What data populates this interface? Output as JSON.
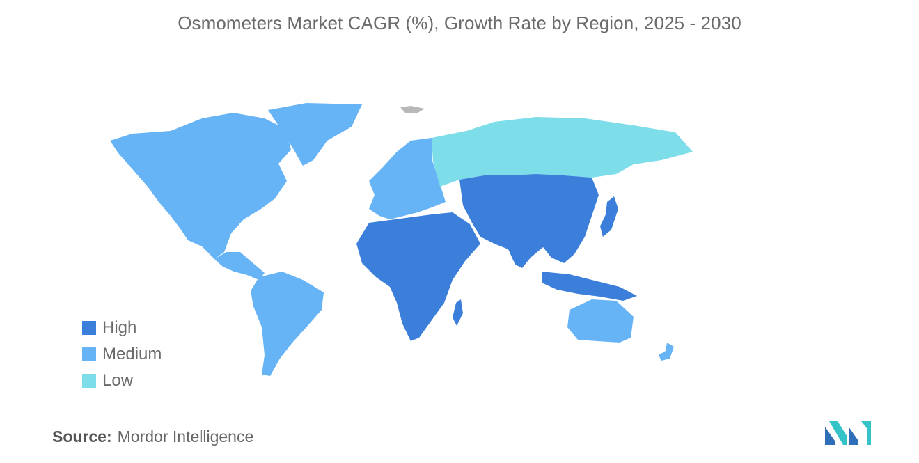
{
  "title": "Osmometers Market CAGR (%), Growth Rate by Region, 2025 - 2030",
  "legend": [
    {
      "label": "High",
      "color": "#3b7fdb"
    },
    {
      "label": "Medium",
      "color": "#66b3f5"
    },
    {
      "label": "Low",
      "color": "#7ddde9"
    }
  ],
  "colors": {
    "no_data": "#b8b8b8",
    "high": "#3b7fdb",
    "medium": "#66b3f5",
    "low": "#7ddde9"
  },
  "regions": [
    {
      "name": "North America",
      "level": "Medium"
    },
    {
      "name": "South America",
      "level": "Medium"
    },
    {
      "name": "Europe",
      "level": "Medium"
    },
    {
      "name": "Russia",
      "level": "Low"
    },
    {
      "name": "Asia-Pacific",
      "level": "High"
    },
    {
      "name": "Middle East and Africa",
      "level": "High"
    },
    {
      "name": "Australia and New Zealand",
      "level": "Medium"
    }
  ],
  "source": {
    "label": "Source:",
    "value": "Mordor Intelligence"
  },
  "logo": "mordor-intelligence-logo"
}
